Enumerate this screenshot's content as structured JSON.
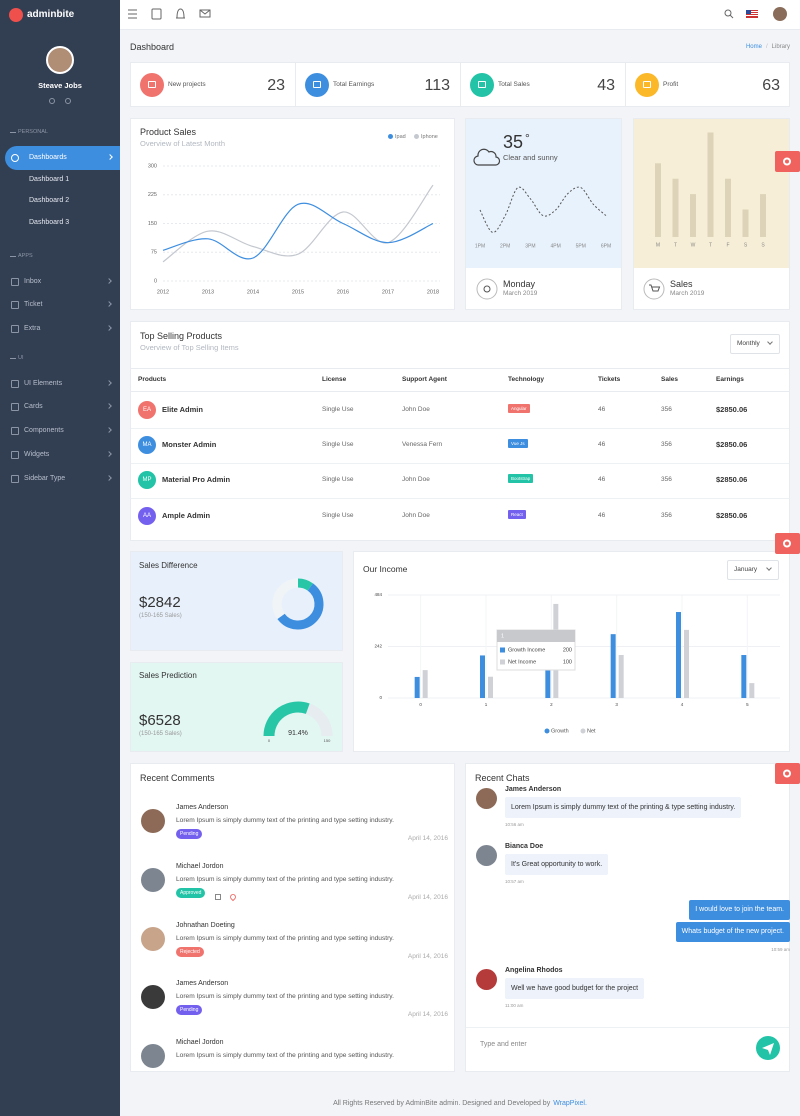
{
  "brand": "adminbite",
  "user": {
    "name": "Steave Jobs"
  },
  "sidebar": {
    "sections": [
      {
        "label": "PERSONAL",
        "items": [
          {
            "label": "Dashboards",
            "active": true,
            "children": [
              "Dashboard 1",
              "Dashboard 2",
              "Dashboard 3"
            ]
          }
        ]
      },
      {
        "label": "APPS",
        "items": [
          {
            "label": "Inbox"
          },
          {
            "label": "Ticket"
          },
          {
            "label": "Extra"
          }
        ]
      },
      {
        "label": "UI",
        "items": [
          {
            "label": "UI Elements"
          },
          {
            "label": "Cards"
          },
          {
            "label": "Components"
          },
          {
            "label": "Widgets"
          },
          {
            "label": "Sidebar Type"
          }
        ]
      }
    ]
  },
  "page": {
    "title": "Dashboard",
    "breadcrumb": [
      "Home",
      "Library"
    ]
  },
  "stats": [
    {
      "label": "New projects",
      "value": 23,
      "color": "#f0736e"
    },
    {
      "label": "Total Earnings",
      "value": 113,
      "color": "#3e8ee0"
    },
    {
      "label": "Total Sales",
      "value": 43,
      "color": "#22c3a6"
    },
    {
      "label": "Profit",
      "value": 63,
      "color": "#fbb829"
    }
  ],
  "product_sales": {
    "type": "line",
    "title": "Product Sales",
    "subtitle": "Overview of Latest Month",
    "x": [
      2012,
      2013,
      2014,
      2015,
      2016,
      2017,
      2018
    ],
    "series": [
      {
        "name": "Ipad",
        "color": "#3e8ee0",
        "values": [
          80,
          110,
          60,
          200,
          150,
          100,
          150
        ]
      },
      {
        "name": "Iphone",
        "color": "#c4c8cf",
        "values": [
          50,
          130,
          90,
          70,
          180,
          100,
          250
        ]
      }
    ],
    "ylim": [
      0,
      300
    ],
    "yticks": [
      0,
      75,
      150,
      225,
      300
    ],
    "grid": true
  },
  "weather": {
    "temperature": 35,
    "unit": "°",
    "condition": "Clear and sunny",
    "day": "Monday",
    "date": "March 2019",
    "chart": {
      "type": "line",
      "x": [
        0,
        1,
        2,
        3,
        4,
        5,
        6,
        7,
        8,
        9,
        10
      ],
      "values": [
        5,
        1,
        4,
        9,
        7,
        4,
        5,
        8,
        9,
        6,
        4
      ],
      "xlim": [
        0,
        10
      ],
      "xticks": [
        {
          "value": 0,
          "label": "1PM"
        },
        {
          "value": 2,
          "label": "2PM"
        },
        {
          "value": 4,
          "label": "3PM"
        },
        {
          "value": 6,
          "label": "4PM"
        },
        {
          "value": 8,
          "label": "5PM"
        },
        {
          "value": 10,
          "label": "6PM"
        }
      ],
      "ylim": [
        0,
        10
      ],
      "color": "#555555"
    }
  },
  "sales_card": {
    "title": "Sales",
    "date": "March 2019",
    "chart": {
      "type": "bar",
      "categories": [
        "M",
        "T",
        "W",
        "T",
        "F",
        "S",
        "S"
      ],
      "values": [
        67,
        53,
        39,
        95,
        53,
        25,
        39
      ],
      "ylim": [
        0,
        100
      ],
      "color": "#ddd3b8"
    }
  },
  "top_selling": {
    "title": "Top Selling Products",
    "subtitle": "Overview of Top Selling Items",
    "filter": "Monthly",
    "columns": [
      "Products",
      "License",
      "Support Agent",
      "Technology",
      "Tickets",
      "Sales",
      "Earnings"
    ],
    "rows": [
      {
        "initials": "EA",
        "color": "#f0736e",
        "product": "Elite Admin",
        "license": "Single Use",
        "agent": "John Doe",
        "technology": "Angular",
        "tech_color": "#f0736e",
        "tickets": 46,
        "sales": 356,
        "earnings": "$2850.06"
      },
      {
        "initials": "MA",
        "color": "#3e8ee0",
        "product": "Monster Admin",
        "license": "Single Use",
        "agent": "Venessa Fern",
        "technology": "Vue Js",
        "tech_color": "#3e8ee0",
        "tickets": 46,
        "sales": 356,
        "earnings": "$2850.06"
      },
      {
        "initials": "MP",
        "color": "#22c3a6",
        "product": "Material Pro Admin",
        "license": "Single Use",
        "agent": "John Doe",
        "technology": "Bootstrap",
        "tech_color": "#22c3a6",
        "tickets": 46,
        "sales": 356,
        "earnings": "$2850.06"
      },
      {
        "initials": "AA",
        "color": "#7460ee",
        "product": "Ample Admin",
        "license": "Single Use",
        "agent": "John Doe",
        "technology": "React",
        "tech_color": "#7460ee",
        "tickets": 46,
        "sales": 356,
        "earnings": "$2850.06"
      }
    ]
  },
  "sales_difference": {
    "title": "Sales Difference",
    "amount": "$2842",
    "note": "(150-165 Sales)",
    "chart": {
      "type": "donut",
      "segments": [
        {
          "value": 10,
          "color": "#26c6a6"
        },
        {
          "value": 55,
          "color": "#3e8ee0"
        },
        {
          "value": 35,
          "color": "#f1f4f7"
        }
      ]
    }
  },
  "sales_prediction": {
    "title": "Sales Prediction",
    "amount": "$6528",
    "note": "(150-165 Sales)",
    "chart": {
      "type": "gauge",
      "value": 91.4,
      "value_label": "91.4%",
      "ylim": [
        0,
        150
      ],
      "yticks": [
        0,
        150
      ],
      "color": "#26c6a6"
    }
  },
  "income": {
    "type": "bar",
    "title": "Our Income",
    "filter": "January",
    "categories": [
      0,
      1,
      2,
      3,
      4,
      5
    ],
    "series": [
      {
        "name": "Growth",
        "color": "#3e8ee0",
        "values": [
          99,
          200,
          280,
          300,
          404,
          202
        ]
      },
      {
        "name": "Net",
        "color": "#cfd1d6",
        "values": [
          131,
          100,
          442,
          202,
          320,
          70
        ]
      }
    ],
    "ylim": [
      0,
      484
    ],
    "yticks": [
      0,
      242,
      484
    ],
    "grid": true,
    "tooltip": {
      "category": 1,
      "labels": [
        "Growth Income",
        "Net Income"
      ]
    }
  },
  "comments": {
    "title": "Recent Comments",
    "items": [
      {
        "name": "James Anderson",
        "text": "Lorem Ipsum is simply dummy text of the printing and type setting industry.",
        "status": "Pending",
        "status_color": "#7460ee",
        "date": "April 14, 2016"
      },
      {
        "name": "Michael Jordon",
        "text": "Lorem Ipsum is simply dummy text of the printing and type setting industry.",
        "status": "Approved",
        "status_color": "#22c3a6",
        "date": "April 14, 2016"
      },
      {
        "name": "Johnathan Doeting",
        "text": "Lorem Ipsum is simply dummy text of the printing and type setting industry.",
        "status": "Rejected",
        "status_color": "#f0736e",
        "date": "April 14, 2016"
      },
      {
        "name": "James Anderson",
        "text": "Lorem Ipsum is simply dummy text of the printing and type setting industry.",
        "status": "Pending",
        "status_color": "#7460ee",
        "date": "April 14, 2016"
      },
      {
        "name": "Michael Jordon",
        "text": "Lorem Ipsum is simply dummy text of the printing and type setting industry."
      }
    ]
  },
  "chats": {
    "title": "Recent Chats",
    "placeholder": "Type and enter",
    "messages": [
      {
        "from": "James Anderson",
        "text": [
          "Lorem Ipsum is simply dummy text of the printing & type setting industry."
        ],
        "time": "10:56 am"
      },
      {
        "from": "Bianca Doe",
        "text": [
          "It's Great opportunity to work."
        ],
        "time": "10:57 am"
      },
      {
        "text": [
          "I would love to join the team.",
          "Whats budget of the new project."
        ],
        "time": "10:59 am",
        "mine": true
      },
      {
        "from": "Angelina Rhodos",
        "text": [
          "Well we have good budget for the project"
        ],
        "time": "11:00 am"
      }
    ]
  },
  "footer": {
    "text": "All Rights Reserved by AdminBite admin. Designed and Developed by",
    "link": "WrapPixel."
  }
}
